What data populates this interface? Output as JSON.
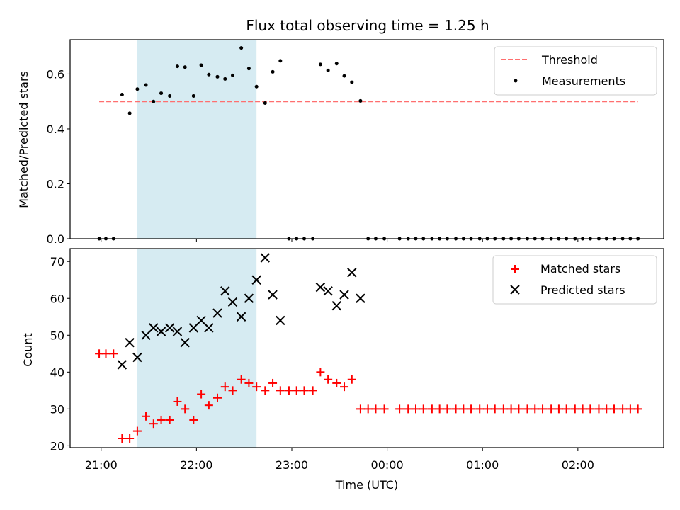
{
  "chart_data": {
    "type": "scatter",
    "title": "Flux total observing time = 1.25 h",
    "xlabel": "Time (UTC)",
    "x_tick_labels": [
      "21:00",
      "22:00",
      "23:00",
      "00:00",
      "01:00",
      "02:00"
    ],
    "x_ticks_hours": [
      21,
      22,
      23,
      24,
      25,
      26
    ],
    "x_range_hours": [
      20.675,
      26.9
    ],
    "shaded_interval_hours": [
      21.38,
      22.63
    ],
    "shade_color": "#add8e6",
    "panels": [
      {
        "ylabel": "Matched/Predicted stars",
        "ylim": [
          0.0,
          0.725
        ],
        "y_ticks": [
          0.0,
          0.2,
          0.4,
          0.6
        ],
        "y_tick_labels": [
          "0.0",
          "0.2",
          "0.4",
          "0.6"
        ],
        "legend_position": "top-right",
        "threshold": {
          "name": "Threshold",
          "y": 0.5,
          "x_range": [
            20.98,
            26.63
          ],
          "color": "#ff6f6f"
        },
        "series": [
          {
            "name": "Measurements",
            "color": "#000000",
            "marker": "dot",
            "points": [
              [
                20.98,
                0.0
              ],
              [
                21.05,
                0.0
              ],
              [
                21.13,
                0.0
              ],
              [
                21.22,
                0.525
              ],
              [
                21.3,
                0.457
              ],
              [
                21.38,
                0.545
              ],
              [
                21.47,
                0.56
              ],
              [
                21.55,
                0.5
              ],
              [
                21.63,
                0.53
              ],
              [
                21.72,
                0.52
              ],
              [
                21.8,
                0.628
              ],
              [
                21.88,
                0.625
              ],
              [
                21.97,
                0.52
              ],
              [
                22.05,
                0.632
              ],
              [
                22.13,
                0.598
              ],
              [
                22.22,
                0.59
              ],
              [
                22.3,
                0.582
              ],
              [
                22.38,
                0.595
              ],
              [
                22.47,
                0.695
              ],
              [
                22.55,
                0.62
              ],
              [
                22.63,
                0.554
              ],
              [
                22.72,
                0.494
              ],
              [
                22.8,
                0.608
              ],
              [
                22.88,
                0.648
              ],
              [
                22.97,
                0.0
              ],
              [
                23.05,
                0.0
              ],
              [
                23.13,
                0.0
              ],
              [
                23.22,
                0.0
              ],
              [
                23.3,
                0.635
              ],
              [
                23.38,
                0.613
              ],
              [
                23.47,
                0.638
              ],
              [
                23.55,
                0.593
              ],
              [
                23.63,
                0.57
              ],
              [
                23.72,
                0.502
              ],
              [
                23.8,
                0.0
              ],
              [
                23.88,
                0.0
              ],
              [
                23.97,
                0.0
              ],
              [
                24.13,
                0.0
              ],
              [
                24.22,
                0.0
              ],
              [
                24.3,
                0.0
              ],
              [
                24.38,
                0.0
              ],
              [
                24.47,
                0.0
              ],
              [
                24.55,
                0.0
              ],
              [
                24.63,
                0.0
              ],
              [
                24.72,
                0.0
              ],
              [
                24.8,
                0.0
              ],
              [
                24.88,
                0.0
              ],
              [
                24.97,
                0.0
              ],
              [
                25.05,
                0.0
              ],
              [
                25.13,
                0.0
              ],
              [
                25.22,
                0.0
              ],
              [
                25.3,
                0.0
              ],
              [
                25.38,
                0.0
              ],
              [
                25.47,
                0.0
              ],
              [
                25.55,
                0.0
              ],
              [
                25.63,
                0.0
              ],
              [
                25.72,
                0.0
              ],
              [
                25.8,
                0.0
              ],
              [
                25.88,
                0.0
              ],
              [
                25.97,
                0.0
              ],
              [
                26.05,
                0.0
              ],
              [
                26.13,
                0.0
              ],
              [
                26.22,
                0.0
              ],
              [
                26.3,
                0.0
              ],
              [
                26.38,
                0.0
              ],
              [
                26.47,
                0.0
              ],
              [
                26.55,
                0.0
              ],
              [
                26.63,
                0.0
              ]
            ]
          }
        ]
      },
      {
        "ylabel": "Count",
        "ylim": [
          19.5,
          73.5
        ],
        "y_ticks": [
          20,
          30,
          40,
          50,
          60,
          70
        ],
        "y_tick_labels": [
          "20",
          "30",
          "40",
          "50",
          "60",
          "70"
        ],
        "legend_position": "top-right",
        "series": [
          {
            "name": "Matched stars",
            "color": "#ff0000",
            "marker": "plus",
            "points": [
              [
                20.98,
                45
              ],
              [
                21.05,
                45
              ],
              [
                21.13,
                45
              ],
              [
                21.22,
                22
              ],
              [
                21.3,
                22
              ],
              [
                21.38,
                24
              ],
              [
                21.47,
                28
              ],
              [
                21.55,
                26
              ],
              [
                21.63,
                27
              ],
              [
                21.72,
                27
              ],
              [
                21.8,
                32
              ],
              [
                21.88,
                30
              ],
              [
                21.97,
                27
              ],
              [
                22.05,
                34
              ],
              [
                22.13,
                31
              ],
              [
                22.22,
                33
              ],
              [
                22.3,
                36
              ],
              [
                22.38,
                35
              ],
              [
                22.47,
                38
              ],
              [
                22.55,
                37
              ],
              [
                22.63,
                36
              ],
              [
                22.72,
                35
              ],
              [
                22.8,
                37
              ],
              [
                22.88,
                35
              ],
              [
                22.97,
                35
              ],
              [
                23.05,
                35
              ],
              [
                23.13,
                35
              ],
              [
                23.22,
                35
              ],
              [
                23.3,
                40
              ],
              [
                23.38,
                38
              ],
              [
                23.47,
                37
              ],
              [
                23.55,
                36
              ],
              [
                23.63,
                38
              ],
              [
                23.72,
                30
              ],
              [
                23.8,
                30
              ],
              [
                23.88,
                30
              ],
              [
                23.97,
                30
              ],
              [
                24.13,
                30
              ],
              [
                24.22,
                30
              ],
              [
                24.3,
                30
              ],
              [
                24.38,
                30
              ],
              [
                24.47,
                30
              ],
              [
                24.55,
                30
              ],
              [
                24.63,
                30
              ],
              [
                24.72,
                30
              ],
              [
                24.8,
                30
              ],
              [
                24.88,
                30
              ],
              [
                24.97,
                30
              ],
              [
                25.05,
                30
              ],
              [
                25.13,
                30
              ],
              [
                25.22,
                30
              ],
              [
                25.3,
                30
              ],
              [
                25.38,
                30
              ],
              [
                25.47,
                30
              ],
              [
                25.55,
                30
              ],
              [
                25.63,
                30
              ],
              [
                25.72,
                30
              ],
              [
                25.8,
                30
              ],
              [
                25.88,
                30
              ],
              [
                25.97,
                30
              ],
              [
                26.05,
                30
              ],
              [
                26.13,
                30
              ],
              [
                26.22,
                30
              ],
              [
                26.3,
                30
              ],
              [
                26.38,
                30
              ],
              [
                26.47,
                30
              ],
              [
                26.55,
                30
              ],
              [
                26.63,
                30
              ]
            ]
          },
          {
            "name": "Predicted stars",
            "color": "#000000",
            "marker": "x",
            "points": [
              [
                21.22,
                42
              ],
              [
                21.3,
                48
              ],
              [
                21.38,
                44
              ],
              [
                21.47,
                50
              ],
              [
                21.55,
                52
              ],
              [
                21.63,
                51
              ],
              [
                21.72,
                52
              ],
              [
                21.8,
                51
              ],
              [
                21.88,
                48
              ],
              [
                21.97,
                52
              ],
              [
                22.05,
                54
              ],
              [
                22.13,
                52
              ],
              [
                22.22,
                56
              ],
              [
                22.3,
                62
              ],
              [
                22.38,
                59
              ],
              [
                22.47,
                55
              ],
              [
                22.55,
                60
              ],
              [
                22.63,
                65
              ],
              [
                22.72,
                71
              ],
              [
                22.8,
                61
              ],
              [
                22.88,
                54
              ],
              [
                23.3,
                63
              ],
              [
                23.38,
                62
              ],
              [
                23.47,
                58
              ],
              [
                23.55,
                61
              ],
              [
                23.63,
                67
              ],
              [
                23.72,
                60
              ]
            ]
          }
        ]
      }
    ]
  }
}
